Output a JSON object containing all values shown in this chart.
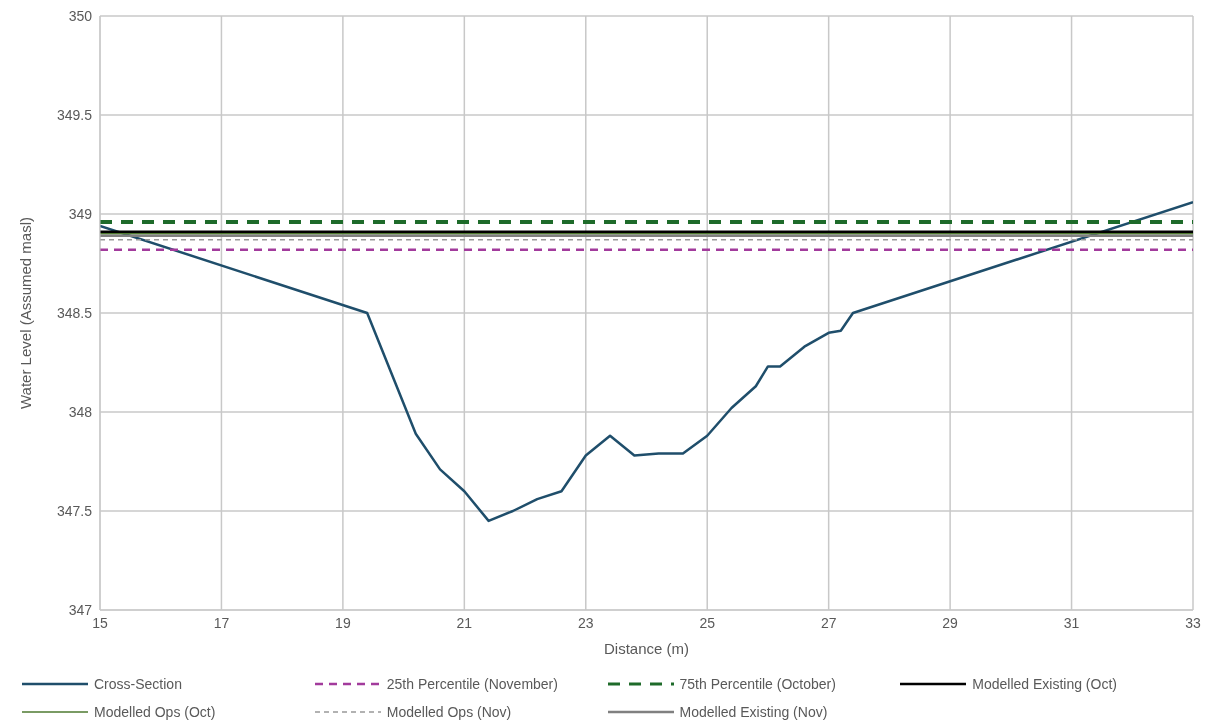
{
  "chart_data": {
    "type": "line",
    "xlabel": "Distance (m)",
    "ylabel": "Water Level (Assumed masl)",
    "xlim": [
      15,
      33
    ],
    "xticks": [
      15,
      17,
      19,
      21,
      23,
      25,
      27,
      29,
      31,
      33
    ],
    "ylim": [
      347,
      350
    ],
    "yticks": [
      347,
      347.5,
      348,
      348.5,
      349,
      349.5,
      350
    ],
    "grid": true,
    "legend": "bottom",
    "marker": "none",
    "series": [
      {
        "name": "Cross-Section",
        "color": "#1f4e6b",
        "line_style": "solid",
        "x": [
          15,
          19.4,
          20.2,
          20.6,
          21.0,
          21.4,
          21.8,
          22.2,
          22.6,
          23.0,
          23.4,
          23.8,
          24.2,
          24.6,
          25.0,
          25.4,
          25.8,
          26.0,
          26.2,
          26.6,
          27.0,
          27.2,
          27.4,
          33
        ],
        "values": [
          348.94,
          348.5,
          347.89,
          347.71,
          347.6,
          347.45,
          347.5,
          347.56,
          347.6,
          347.78,
          347.88,
          347.78,
          347.79,
          347.79,
          347.88,
          348.02,
          348.13,
          348.23,
          348.23,
          348.33,
          348.4,
          348.41,
          348.5,
          349.06
        ]
      },
      {
        "name": "25th Percentile (November)",
        "color": "#a23b9c",
        "line_style": "dashed",
        "x": [
          15,
          33
        ],
        "values": [
          348.82,
          348.82
        ]
      },
      {
        "name": "75th Percentile (October)",
        "color": "#1e6b2a",
        "line_style": "dashed",
        "x": [
          15,
          33
        ],
        "values": [
          348.96,
          348.96
        ]
      },
      {
        "name": "Modelled Existing (Oct)",
        "color": "#000000",
        "line_style": "solid",
        "x": [
          15,
          33
        ],
        "values": [
          348.91,
          348.91
        ]
      },
      {
        "name": "Modelled Ops (Oct)",
        "color": "#4e7a30",
        "line_style": "solid",
        "x": [
          15,
          33
        ],
        "values": [
          348.9,
          348.9
        ]
      },
      {
        "name": "Modelled Ops (Nov)",
        "color": "#999999",
        "line_style": "dashed",
        "x": [
          15,
          33
        ],
        "values": [
          348.87,
          348.87
        ]
      },
      {
        "name": "Modelled Existing (Nov)",
        "color": "#808080",
        "line_style": "solid",
        "x": [
          15,
          33
        ],
        "values": [
          348.89,
          348.89
        ]
      }
    ]
  }
}
